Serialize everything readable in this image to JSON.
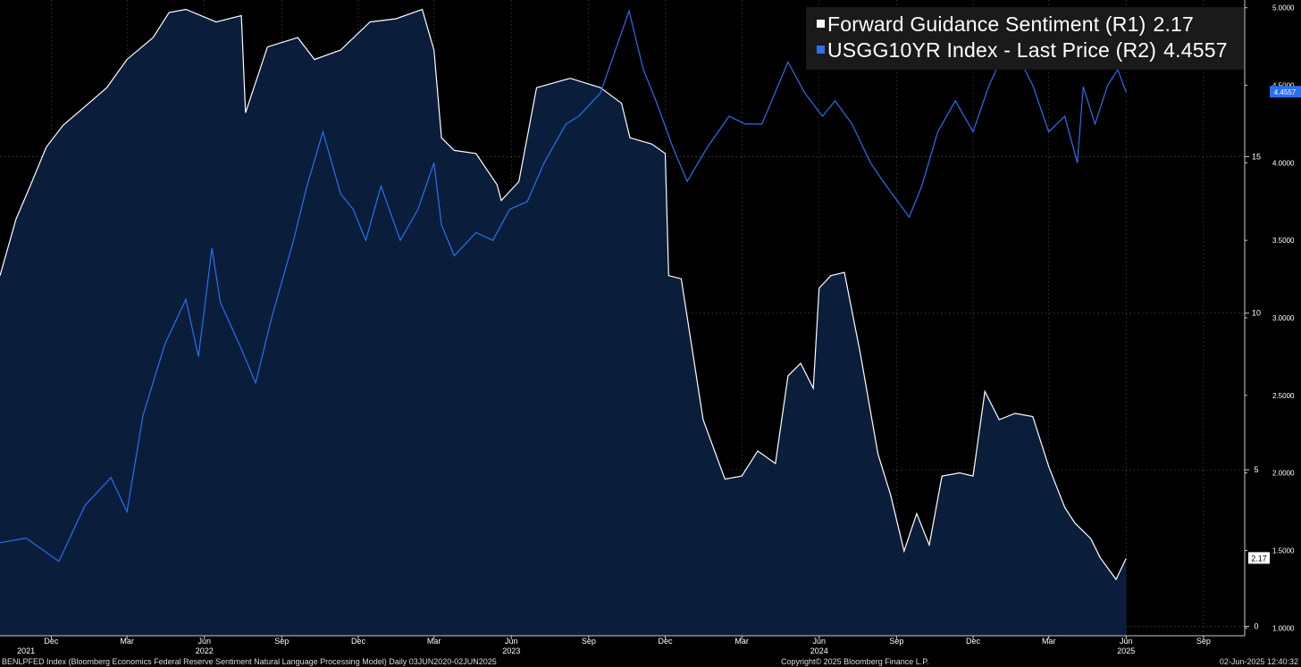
{
  "colors": {
    "background": "#000000",
    "sentiment_line": "#ffffff",
    "sentiment_fill": "#0a1e3c",
    "yield_line": "#2a6ff0",
    "grid": "#4a4a4a",
    "legend_bg": "#1a1a1a"
  },
  "legend": {
    "sentiment_label": "Forward Guidance Sentiment (R1)",
    "sentiment_value": "2.17",
    "yield_label": "USGG10YR Index - Last Price (R2)",
    "yield_value": "4.4557"
  },
  "footer": {
    "left": "BENLPFED Index (Bloomberg Economics Federal Reserve Sentiment Natural Language Processing Model)  Daily 03JUN2020-02JUN2025",
    "center": "Copyright© 2025 Bloomberg Finance L.P.",
    "right": "02-Jun-2025 12:40:32"
  },
  "chart_data": {
    "type": "line",
    "xlim": [
      "2021-10-01",
      "2025-10-20"
    ],
    "x_ticks": [
      {
        "date": "2021-12-01",
        "label": "Dec"
      },
      {
        "date": "2022-03-01",
        "label": "Mar"
      },
      {
        "date": "2022-06-01",
        "label": "Jun"
      },
      {
        "date": "2022-09-01",
        "label": "Sep"
      },
      {
        "date": "2022-12-01",
        "label": "Dec"
      },
      {
        "date": "2023-03-01",
        "label": "Mar"
      },
      {
        "date": "2023-06-01",
        "label": "Jun"
      },
      {
        "date": "2023-09-01",
        "label": "Sep"
      },
      {
        "date": "2023-12-01",
        "label": "Dec"
      },
      {
        "date": "2024-03-01",
        "label": "Mar"
      },
      {
        "date": "2024-06-01",
        "label": "Jun"
      },
      {
        "date": "2024-09-01",
        "label": "Sep"
      },
      {
        "date": "2024-12-01",
        "label": "Dec"
      },
      {
        "date": "2025-03-01",
        "label": "Mar"
      },
      {
        "date": "2025-06-01",
        "label": "Jun"
      },
      {
        "date": "2025-09-01",
        "label": "Sep"
      }
    ],
    "year_labels": [
      {
        "date": "2021-11-01",
        "label": "2021"
      },
      {
        "date": "2022-06-01",
        "label": "2022"
      },
      {
        "date": "2023-06-01",
        "label": "2023"
      },
      {
        "date": "2024-06-01",
        "label": "2024"
      },
      {
        "date": "2025-06-01",
        "label": "2025"
      }
    ],
    "axis_r1": {
      "ylim": [
        -0.3,
        20
      ],
      "ticks": [
        0,
        5,
        10,
        15
      ]
    },
    "axis_r2": {
      "ylim": [
        0.95,
        5.05
      ],
      "ticks": [
        "1.0000",
        "1.5000",
        "2.0000",
        "2.5000",
        "3.0000",
        "3.5000",
        "4.0000",
        "4.5000",
        "5.0000"
      ]
    },
    "grid": true,
    "legend_position": "top-right",
    "series": [
      {
        "name": "Forward Guidance Sentiment (R1)",
        "axis": "R1",
        "style": "area",
        "last_value": "2.17",
        "x": [
          "2021-10-01",
          "2021-10-20",
          "2021-11-05",
          "2021-11-25",
          "2021-12-15",
          "2022-01-10",
          "2022-02-05",
          "2022-03-01",
          "2022-04-01",
          "2022-04-20",
          "2022-05-10",
          "2022-06-15",
          "2022-07-15",
          "2022-07-20",
          "2022-08-15",
          "2022-09-20",
          "2022-10-10",
          "2022-11-10",
          "2022-12-15",
          "2023-01-15",
          "2023-02-15",
          "2023-03-01",
          "2023-03-10",
          "2023-03-25",
          "2023-04-20",
          "2023-05-15",
          "2023-05-20",
          "2023-06-10",
          "2023-07-01",
          "2023-08-10",
          "2023-09-15",
          "2023-10-10",
          "2023-10-20",
          "2023-11-15",
          "2023-12-01",
          "2023-12-05",
          "2023-12-20",
          "2024-01-15",
          "2024-02-10",
          "2024-03-01",
          "2024-03-20",
          "2024-04-10",
          "2024-04-25",
          "2024-05-10",
          "2024-05-25",
          "2024-06-01",
          "2024-06-15",
          "2024-07-01",
          "2024-07-20",
          "2024-08-10",
          "2024-08-25",
          "2024-09-10",
          "2024-09-25",
          "2024-10-10",
          "2024-10-25",
          "2024-11-15",
          "2024-12-01",
          "2024-12-15",
          "2025-01-01",
          "2025-01-20",
          "2025-02-10",
          "2025-03-01",
          "2025-03-20",
          "2025-04-01",
          "2025-04-20",
          "2025-05-01",
          "2025-05-20",
          "2025-06-01"
        ],
        "y": [
          11.2,
          13.0,
          14.0,
          15.3,
          16.0,
          16.6,
          17.2,
          18.1,
          18.8,
          19.6,
          19.7,
          19.3,
          19.5,
          16.4,
          18.5,
          18.8,
          18.1,
          18.4,
          19.3,
          19.4,
          19.7,
          18.4,
          15.6,
          15.2,
          15.1,
          14.1,
          13.6,
          14.2,
          17.2,
          17.5,
          17.2,
          16.7,
          15.6,
          15.4,
          15.1,
          11.2,
          11.1,
          6.6,
          4.7,
          4.8,
          5.6,
          5.2,
          8.0,
          8.4,
          7.6,
          10.8,
          11.2,
          11.3,
          8.7,
          5.5,
          4.2,
          2.4,
          3.6,
          2.6,
          4.8,
          4.9,
          4.8,
          7.5,
          6.6,
          6.8,
          6.7,
          5.1,
          3.8,
          3.3,
          2.8,
          2.2,
          1.5,
          2.17
        ]
      },
      {
        "name": "USGG10YR Index - Last Price (R2)",
        "axis": "R2",
        "style": "line",
        "last_value": "4.4557",
        "x": [
          "2021-10-01",
          "2021-11-01",
          "2021-12-10",
          "2022-01-10",
          "2022-02-10",
          "2022-03-01",
          "2022-03-20",
          "2022-04-15",
          "2022-05-10",
          "2022-05-25",
          "2022-06-10",
          "2022-06-20",
          "2022-07-15",
          "2022-08-01",
          "2022-08-20",
          "2022-09-15",
          "2022-10-01",
          "2022-10-20",
          "2022-11-10",
          "2022-11-25",
          "2022-12-10",
          "2022-12-28",
          "2023-01-20",
          "2023-02-10",
          "2023-03-01",
          "2023-03-10",
          "2023-03-25",
          "2023-04-20",
          "2023-05-10",
          "2023-05-30",
          "2023-06-20",
          "2023-07-10",
          "2023-08-05",
          "2023-08-20",
          "2023-09-15",
          "2023-10-01",
          "2023-10-19",
          "2023-11-05",
          "2023-11-20",
          "2023-12-10",
          "2023-12-27",
          "2024-01-20",
          "2024-02-15",
          "2024-03-05",
          "2024-03-25",
          "2024-04-25",
          "2024-05-15",
          "2024-06-05",
          "2024-06-20",
          "2024-07-10",
          "2024-08-01",
          "2024-08-20",
          "2024-09-16",
          "2024-10-01",
          "2024-10-20",
          "2024-11-10",
          "2024-12-01",
          "2024-12-20",
          "2025-01-14",
          "2025-02-10",
          "2025-03-01",
          "2025-03-20",
          "2025-04-04",
          "2025-04-11",
          "2025-04-25",
          "2025-05-10",
          "2025-05-22",
          "2025-06-01"
        ],
        "y": [
          1.55,
          1.58,
          1.43,
          1.79,
          1.97,
          1.75,
          2.37,
          2.83,
          3.12,
          2.75,
          3.45,
          3.1,
          2.8,
          2.58,
          3.0,
          3.5,
          3.85,
          4.2,
          3.8,
          3.7,
          3.5,
          3.85,
          3.5,
          3.7,
          4.0,
          3.6,
          3.4,
          3.55,
          3.5,
          3.7,
          3.75,
          4.0,
          4.25,
          4.3,
          4.45,
          4.7,
          4.98,
          4.6,
          4.4,
          4.1,
          3.88,
          4.1,
          4.3,
          4.25,
          4.25,
          4.65,
          4.45,
          4.3,
          4.4,
          4.25,
          4.0,
          3.85,
          3.65,
          3.85,
          4.2,
          4.4,
          4.2,
          4.5,
          4.79,
          4.5,
          4.2,
          4.3,
          4.0,
          4.49,
          4.25,
          4.5,
          4.6,
          4.4557
        ]
      }
    ]
  }
}
